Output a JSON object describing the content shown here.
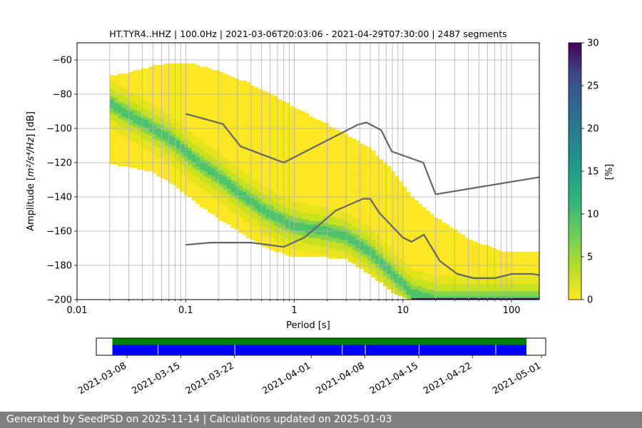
{
  "chart_data": {
    "type": "heatmap",
    "title": "HT.TYR4..HHZ | 100.0Hz | 2021-03-06T20:03:06 - 2021-04-29T07:30:00 | 2487 segments",
    "xlabel": "Period [s]",
    "ylabel_prefix": "Amplitude [",
    "ylabel_math": "m²/s⁴/Hz",
    "ylabel_suffix": "] [dB]",
    "x_scale": "log",
    "xlim": [
      0.01,
      180
    ],
    "ylim": [
      -200,
      -50
    ],
    "x_ticks": [
      0.01,
      0.1,
      1,
      10,
      100
    ],
    "x_tick_labels": [
      "0.01",
      "0.1",
      "1",
      "10",
      "100"
    ],
    "y_ticks": [
      -200,
      -180,
      -160,
      -140,
      -120,
      -100,
      -80,
      -60
    ],
    "y_tick_labels": [
      "−200",
      "−180",
      "−160",
      "−140",
      "−120",
      "−100",
      "−80",
      "−60"
    ],
    "grid": true,
    "colorbar": {
      "label": "[%]",
      "range": [
        0,
        30
      ],
      "ticks": [
        0,
        5,
        10,
        15,
        20,
        25,
        30
      ],
      "tick_labels": [
        "0",
        "5",
        "10",
        "15",
        "20",
        "25",
        "30"
      ],
      "colormap": "viridis_r"
    },
    "psd_band": [
      {
        "period": 0.02,
        "low": -120,
        "high": -70,
        "mode": -85
      },
      {
        "period": 0.03,
        "low": -122,
        "high": -68,
        "mode": -92
      },
      {
        "period": 0.05,
        "low": -125,
        "high": -64,
        "mode": -100
      },
      {
        "period": 0.08,
        "low": -133,
        "high": -62,
        "mode": -108
      },
      {
        "period": 0.12,
        "low": -142,
        "high": -63,
        "mode": -118
      },
      {
        "period": 0.2,
        "low": -152,
        "high": -67,
        "mode": -128
      },
      {
        "period": 0.35,
        "low": -162,
        "high": -73,
        "mode": -140
      },
      {
        "period": 0.6,
        "low": -170,
        "high": -80,
        "mode": -150
      },
      {
        "period": 1.0,
        "low": -175,
        "high": -88,
        "mode": -157
      },
      {
        "period": 2.0,
        "low": -175,
        "high": -98,
        "mode": -160
      },
      {
        "period": 3.0,
        "low": -176,
        "high": -104,
        "mode": -163
      },
      {
        "period": 5.0,
        "low": -185,
        "high": -112,
        "mode": -172
      },
      {
        "period": 8.0,
        "low": -195,
        "high": -125,
        "mode": -185
      },
      {
        "period": 12.0,
        "low": -200,
        "high": -140,
        "mode": -196
      },
      {
        "period": 20.0,
        "low": -200,
        "high": -152,
        "mode": -200
      },
      {
        "period": 40.0,
        "low": -200,
        "high": -165,
        "mode": -200
      },
      {
        "period": 80.0,
        "low": -200,
        "high": -172,
        "mode": -200
      },
      {
        "period": 180.0,
        "low": -200,
        "high": -173,
        "mode": -200
      }
    ],
    "noise_models": {
      "high": [
        [
          0.1,
          -91.5
        ],
        [
          0.22,
          -97.4
        ],
        [
          0.32,
          -110.5
        ],
        [
          0.8,
          -120
        ],
        [
          3.8,
          -98
        ],
        [
          4.6,
          -96.5
        ],
        [
          6.3,
          -101
        ],
        [
          7.9,
          -113.5
        ],
        [
          15.4,
          -120
        ],
        [
          20,
          -138.5
        ],
        [
          180,
          -128.5
        ]
      ],
      "low": [
        [
          0.1,
          -168
        ],
        [
          0.17,
          -166.7
        ],
        [
          0.4,
          -166.7
        ],
        [
          0.8,
          -169.2
        ],
        [
          1.24,
          -163.7
        ],
        [
          2.4,
          -148.1
        ],
        [
          4.3,
          -141.1
        ],
        [
          5.0,
          -141.1
        ],
        [
          6.0,
          -149
        ],
        [
          10,
          -163.8
        ],
        [
          12,
          -166.2
        ],
        [
          15.6,
          -162.1
        ],
        [
          21.9,
          -177.5
        ],
        [
          31.6,
          -185
        ],
        [
          45,
          -187.5
        ],
        [
          70,
          -187.5
        ],
        [
          101,
          -185
        ],
        [
          154,
          -185
        ],
        [
          180,
          -185.7
        ]
      ]
    },
    "timeline": {
      "date_ticks": [
        "2021-03-08",
        "2021-03-15",
        "2021-03-22",
        "2021-04-01",
        "2021-04-08",
        "2021-04-15",
        "2021-04-22",
        "2021-05-01"
      ],
      "coverage_start": "2021-03-06",
      "coverage_end": "2021-04-29",
      "view_start": "2021-03-04",
      "view_end": "2021-05-01",
      "gaps": [
        "2021-03-12",
        "2021-03-22",
        "2021-04-05",
        "2021-04-08",
        "2021-04-15",
        "2021-04-25"
      ],
      "data_color": "#0000ff",
      "processed_color": "#008000"
    }
  },
  "footer": {
    "text": "Generated by SeedPSD on 2025-11-14 | Calculations updated on 2025-01-03"
  },
  "colors": {
    "noise_model": "#666666",
    "grid": "#b0b0b0",
    "footer_bg": "#808080"
  }
}
